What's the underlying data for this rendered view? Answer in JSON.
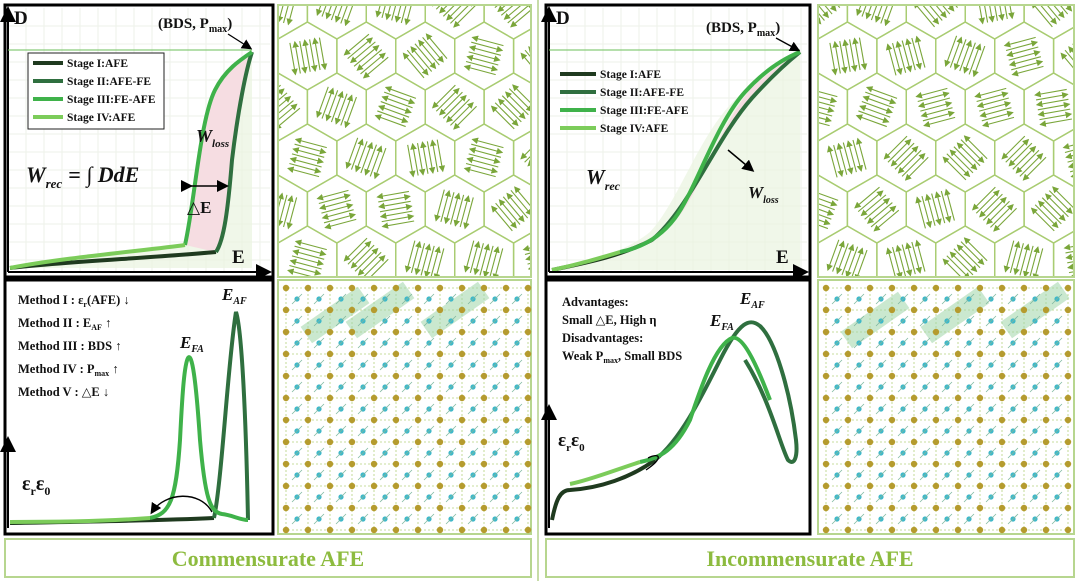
{
  "colors": {
    "stage1": "#1f3a1f",
    "stage2": "#2f6f3f",
    "stage3": "#3fb24a",
    "stage4": "#7ccc5a",
    "loss_fill": "#f6dde2",
    "rec_fill": "#e9f4e0",
    "domain": "#a9cc72",
    "atom_a": "#b59b2e",
    "atom_b": "#3fb8c9",
    "caption": "#8dbb3f"
  },
  "legend": [
    "Stage I:AFE",
    "Stage II:AFE-FE",
    "Stage III:FE-AFE",
    "Stage IV:AFE"
  ],
  "left": {
    "pe": {
      "y_axis": "D",
      "x_axis": "E",
      "point": "(BDS, P",
      "point_sub": "max",
      "point_close": ")",
      "w_rec": "W",
      "w_rec_sub": "rec",
      "w_rec_eq": "= ∫ DdE",
      "w_loss": "W",
      "w_loss_sub": "loss",
      "delta_e": "△E"
    },
    "perm": {
      "y_axis": "ε",
      "y_sub1": "r",
      "y_eps": "ε",
      "y_sub2": "0",
      "peak_af": "E",
      "peak_af_sub": "AF",
      "peak_fa": "E",
      "peak_fa_sub": "FA",
      "methods": [
        {
          "text": "Method I : ε",
          "sub": "r",
          "rest": "(AFE) ↓"
        },
        {
          "text": "Method II : E",
          "sub": "AF",
          "rest": " ↑"
        },
        {
          "text": "Method III : BDS ↑",
          "sub": "",
          "rest": ""
        },
        {
          "text": "Method IV : P",
          "sub": "max",
          "rest": " ↑"
        },
        {
          "text": "Method V : △E ↓",
          "sub": "",
          "rest": ""
        }
      ]
    },
    "caption": "Commensurate AFE"
  },
  "right": {
    "pe": {
      "y_axis": "D",
      "x_axis": "E",
      "point": "(BDS, P",
      "point_sub": "max",
      "point_close": ")",
      "w_rec": "W",
      "w_rec_sub": "rec",
      "w_loss": "W",
      "w_loss_sub": "loss"
    },
    "perm": {
      "y_axis": "ε",
      "y_sub1": "r",
      "y_eps": "ε",
      "y_sub2": "0",
      "peak_af": "E",
      "peak_af_sub": "AF",
      "peak_fa": "E",
      "peak_fa_sub": "FA",
      "adv_title": "Advantages:",
      "adv_text": "Small △E, High η",
      "dis_title": "Disadvantages:",
      "dis_text_a": "Weak P",
      "dis_text_sub": "max",
      "dis_text_b": ", Small BDS"
    },
    "caption": "Incommensurate AFE"
  }
}
